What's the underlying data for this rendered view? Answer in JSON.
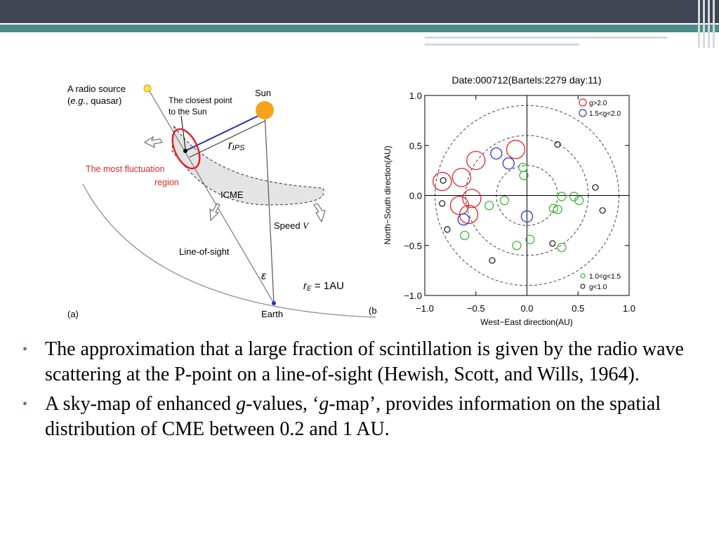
{
  "diagram": {
    "source_1": "A radio source",
    "source_2a": "(",
    "source_2b": "e.g.",
    "source_2c": ", quasar)",
    "closest_1": "The closest point",
    "closest_2": "to the Sun",
    "sun": "Sun",
    "r_ips": "r",
    "r_ips_sub": "IPS",
    "fluct_1": "The most fluctuation",
    "fluct_2": "region",
    "icme": "ICME",
    "speed": "Speed ",
    "speed_v": "V",
    "los": "Line-of-sight",
    "epsilon": "ε",
    "re": "r",
    "re_sub": "E",
    "re_value": " = 1AU",
    "panel_a": "(a)",
    "earth": "Earth",
    "panel_b": "(b)"
  },
  "chart_data": {
    "type": "scatter",
    "title": "Date:000712(Bartels:2279 day:11)",
    "xlabel": "West−East direction(AU)",
    "ylabel": "North−South direction(AU)",
    "xlim": [
      -1.0,
      1.0
    ],
    "ylim": [
      -1.0,
      1.0
    ],
    "xticks": [
      {
        "value": -1.0,
        "label": "−1.0"
      },
      {
        "value": -0.5,
        "label": "−0.5"
      },
      {
        "value": 0,
        "label": "0.0"
      },
      0.5,
      {
        "value": 1.0,
        "label": "1.0"
      }
    ],
    "yticks": [
      {
        "value": -1.0,
        "label": "−1.0"
      },
      {
        "value": -0.5,
        "label": "−0.5"
      },
      {
        "value": 0,
        "label": "0.0"
      },
      0.5,
      {
        "value": 1.0,
        "label": "1.0"
      }
    ],
    "circles": [
      0.3,
      0.6,
      0.9
    ],
    "series": [
      {
        "name": "g>2.0",
        "color": "#e0262b",
        "x": [
          -0.83,
          -0.64,
          -0.5,
          -0.11,
          -0.54,
          -0.66,
          -0.57
        ],
        "y": [
          0.14,
          0.18,
          0.35,
          0.46,
          -0.03,
          -0.1,
          -0.19
        ]
      },
      {
        "name": "1.5<g<2.0",
        "color": "#2b35d6",
        "x": [
          -0.3,
          -0.18,
          0.0,
          -0.62
        ],
        "y": [
          0.42,
          0.32,
          -0.21,
          -0.24
        ]
      },
      {
        "name": "1.0<g<1.5",
        "color": "#3fb53a",
        "x": [
          -0.04,
          -0.03,
          0.34,
          0.46,
          0.51,
          -0.22,
          -0.37,
          0.26,
          0.3,
          -0.61,
          0.03,
          -0.1,
          0.34
        ],
        "y": [
          0.28,
          0.2,
          -0.01,
          -0.01,
          -0.05,
          -0.05,
          -0.1,
          -0.13,
          -0.14,
          -0.4,
          -0.44,
          -0.5,
          -0.52
        ]
      },
      {
        "name": "g<1.0",
        "color": "#222222",
        "x": [
          0.3,
          0.67,
          0.74,
          -0.83,
          -0.78,
          -0.34,
          0.25,
          -0.82
        ],
        "y": [
          0.51,
          0.08,
          -0.15,
          -0.08,
          -0.34,
          -0.65,
          -0.48,
          0.15
        ]
      }
    ]
  },
  "bullets": [
    [
      "The approximation that a large fraction of scintillation is given by the radio wave scattering at the P-point on a line-of-sight (Hewish, Scott, and Wills, 1964)."
    ],
    [
      "A sky-map of enhanced ",
      "g",
      "-values, ‘",
      "g",
      "-map’, provides information on the spatial distribution of CME between 0.2 and 1 AU."
    ]
  ]
}
